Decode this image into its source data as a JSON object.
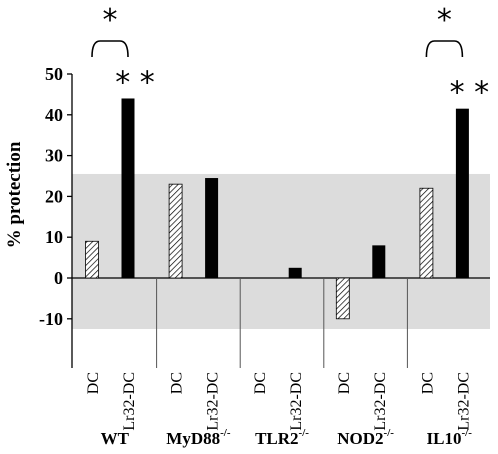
{
  "chart_data": {
    "type": "bar",
    "ylabel": "% protection",
    "ylim": [
      -13,
      50
    ],
    "yticks": [
      "50",
      "40",
      "30",
      "20",
      "10",
      "0",
      "-10"
    ],
    "shaded_band": [
      -12.5,
      25.5
    ],
    "bar_labels": [
      "DC",
      "Lr32-DC"
    ],
    "groups": [
      {
        "name": "WT",
        "sup": "",
        "values": [
          9,
          44
        ]
      },
      {
        "name": "MyD88",
        "sup": "-/-",
        "values": [
          23,
          24.5
        ]
      },
      {
        "name": "TLR2",
        "sup": "-/-",
        "values": [
          0,
          2.5
        ]
      },
      {
        "name": "NOD2",
        "sup": "-/-",
        "values": [
          -10,
          8
        ]
      },
      {
        "name": "IL10",
        "sup": "-/-",
        "values": [
          22,
          41.5
        ]
      }
    ],
    "series": [
      {
        "name": "DC",
        "style": "hatched"
      },
      {
        "name": "Lr32-DC",
        "style": "solid"
      }
    ],
    "significance": [
      {
        "group": "WT",
        "bracket": "*",
        "bar_marker": "* *"
      },
      {
        "group": "IL10",
        "bracket": "*",
        "bar_marker": "* *"
      }
    ],
    "colors": {
      "solid": "#000000",
      "band": "#dcdcdc",
      "hatch": "#000000"
    }
  }
}
